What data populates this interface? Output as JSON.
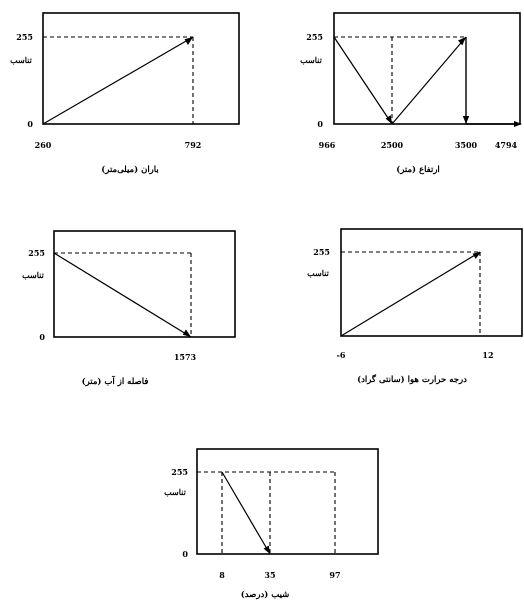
{
  "chart_data": [
    {
      "type": "line",
      "title": "",
      "xlabel": "باران (میلی‌متر)",
      "ylabel": "تناسب",
      "x_ticks": [
        "260",
        "792"
      ],
      "y_ticks": [
        "0",
        "255"
      ],
      "series": [
        {
          "x": [
            260,
            792
          ],
          "y": [
            0,
            255
          ]
        }
      ]
    },
    {
      "type": "line",
      "title": "",
      "xlabel": "ارتفاع (متر)",
      "ylabel": "تناسب",
      "x_ticks": [
        "966",
        "2500",
        "3500",
        "4794"
      ],
      "y_ticks": [
        "0",
        "255"
      ],
      "series": [
        {
          "x": [
            966,
            2500,
            3500,
            3500,
            4794
          ],
          "y": [
            255,
            0,
            255,
            0,
            0
          ]
        }
      ]
    },
    {
      "type": "line",
      "title": "",
      "xlabel": "فاصله از آب (متر)",
      "ylabel": "تناسب",
      "x_ticks": [
        "1573"
      ],
      "y_ticks": [
        "0",
        "255"
      ],
      "series": [
        {
          "x": [
            0,
            1573
          ],
          "y": [
            255,
            0
          ]
        }
      ]
    },
    {
      "type": "line",
      "title": "",
      "xlabel": "درجه حرارت هوا (سانتی گراد)",
      "ylabel": "تناسب",
      "x_ticks": [
        "-6",
        "12"
      ],
      "y_ticks": [
        "255"
      ],
      "series": [
        {
          "x": [
            -6,
            12
          ],
          "y": [
            0,
            255
          ]
        }
      ]
    },
    {
      "type": "line",
      "title": "",
      "xlabel": "شیب (درصد)",
      "ylabel": "تناسب",
      "x_ticks": [
        "8",
        "35",
        "97"
      ],
      "y_ticks": [
        "0",
        "255"
      ],
      "series": [
        {
          "x": [
            8,
            35
          ],
          "y": [
            255,
            0
          ]
        }
      ]
    }
  ]
}
